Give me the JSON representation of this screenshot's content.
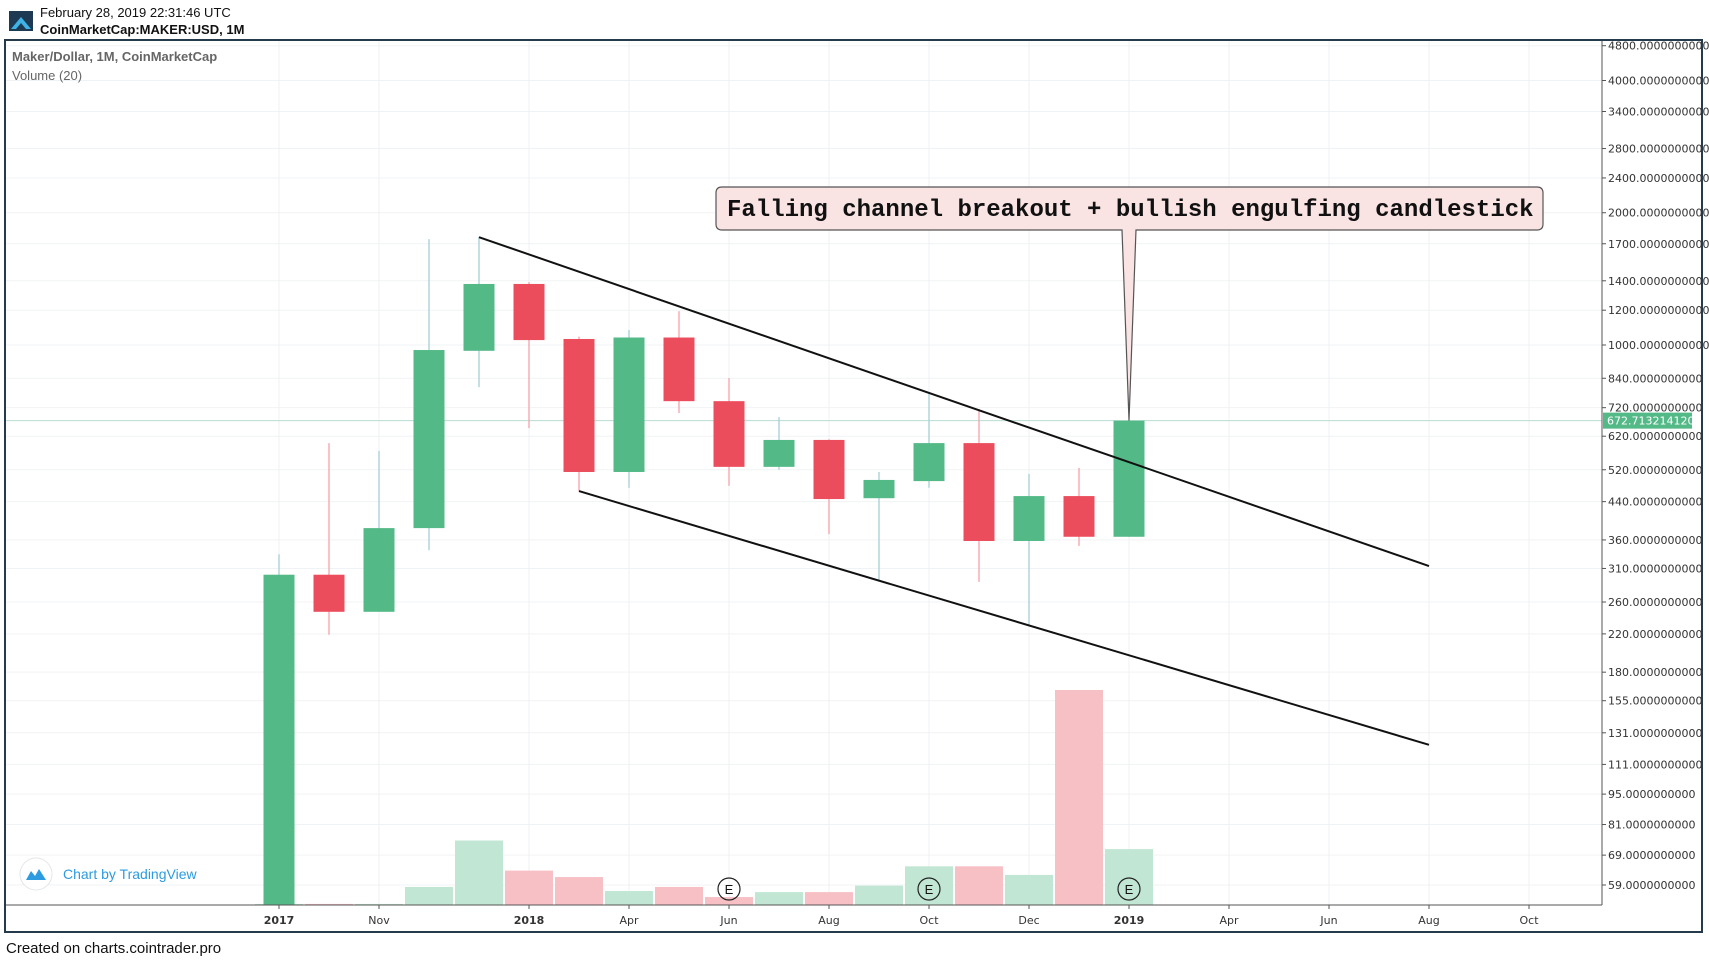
{
  "header": {
    "timestamp": "February 28, 2019 22:31:46 UTC",
    "symbol": "CoinMarketCap:MAKER:USD, 1M"
  },
  "legend": {
    "title": "Maker/Dollar, 1M, CoinMarketCap",
    "volume": "Volume (20)"
  },
  "watermark": "Chart by TradingView",
  "footer": "Created on charts.cointrader.pro",
  "colors": {
    "up": "#53b987",
    "down": "#eb4d5c",
    "up_wick": "#a6cfd5",
    "down_wick": "#f3a1a9",
    "up_volume": "#c1e7d4",
    "down_volume": "#f7c0c5",
    "frame": "#253a4a",
    "annotation_bg": "#f9e3e3",
    "last_price_bg": "#53b987"
  },
  "chart_data": {
    "type": "candlestick",
    "yscale": "log",
    "ylim": [
      54,
      4900
    ],
    "grid": true,
    "price_ticks": [
      "4800.0000000000",
      "4000.0000000000",
      "3400.0000000000",
      "2800.0000000000",
      "2400.0000000000",
      "2000.0000000000",
      "1700.0000000000",
      "1400.0000000000",
      "1200.0000000000",
      "1000.0000000000",
      "840.0000000000",
      "720.0000000000",
      "620.0000000000",
      "520.0000000000",
      "440.0000000000",
      "360.0000000000",
      "310.0000000000",
      "260.0000000000",
      "220.0000000000",
      "180.0000000000",
      "155.0000000000",
      "131.0000000000",
      "111.0000000000",
      "95.0000000000",
      "81.0000000000",
      "69.0000000000",
      "59.0000000000"
    ],
    "time_labels": [
      {
        "label": "2017",
        "index": 0,
        "bold": true
      },
      {
        "label": "Nov",
        "index": 2
      },
      {
        "label": "2018",
        "index": 5,
        "bold": true
      },
      {
        "label": "Apr",
        "index": 7
      },
      {
        "label": "Jun",
        "index": 9
      },
      {
        "label": "Aug",
        "index": 11
      },
      {
        "label": "Oct",
        "index": 13
      },
      {
        "label": "Dec",
        "index": 15
      },
      {
        "label": "2019",
        "index": 17,
        "bold": true
      },
      {
        "label": "Apr",
        "index": 19
      },
      {
        "label": "Jun",
        "index": 21
      },
      {
        "label": "Aug",
        "index": 23
      },
      {
        "label": "Oct",
        "index": 25
      }
    ],
    "candles": [
      {
        "o": 50,
        "h": 334,
        "l": 50,
        "c": 300,
        "v": 0.5
      },
      {
        "o": 300,
        "h": 598,
        "l": 219,
        "c": 247,
        "v": 0.5
      },
      {
        "o": 247,
        "h": 574,
        "l": 247,
        "c": 383,
        "v": 0.5
      },
      {
        "o": 383,
        "h": 1742,
        "l": 341,
        "c": 974,
        "v": 8.4
      },
      {
        "o": 970,
        "h": 1760,
        "l": 802,
        "c": 1377,
        "v": 30
      },
      {
        "o": 1377,
        "h": 1390,
        "l": 647,
        "c": 1026,
        "v": 16
      },
      {
        "o": 1032,
        "h": 1045,
        "l": 465,
        "c": 514,
        "v": 13
      },
      {
        "o": 514,
        "h": 1082,
        "l": 473,
        "c": 1040,
        "v": 6.5
      },
      {
        "o": 1040,
        "h": 1194,
        "l": 700,
        "c": 745,
        "v": 8.4
      },
      {
        "o": 745,
        "h": 841,
        "l": 478,
        "c": 528,
        "v": 3.7
      },
      {
        "o": 528,
        "h": 685,
        "l": 520,
        "c": 608,
        "v": 6
      },
      {
        "o": 608,
        "h": 610,
        "l": 371,
        "c": 446,
        "v": 6
      },
      {
        "o": 448,
        "h": 514,
        "l": 292,
        "c": 493,
        "v": 9
      },
      {
        "o": 490,
        "h": 782,
        "l": 473,
        "c": 598,
        "v": 18
      },
      {
        "o": 598,
        "h": 715,
        "l": 289,
        "c": 358,
        "v": 18
      },
      {
        "o": 358,
        "h": 509,
        "l": 231,
        "c": 453,
        "v": 14
      },
      {
        "o": 453,
        "h": 525,
        "l": 349,
        "c": 366,
        "v": 100
      },
      {
        "o": 366,
        "h": 672.71,
        "l": 366,
        "c": 672.71,
        "v": 26
      }
    ],
    "last_price": "672.7132141200",
    "last_price_value": 672.71321412,
    "event_markers": [
      {
        "label": "E",
        "index": 9
      },
      {
        "label": "E",
        "index": 13
      },
      {
        "label": "E",
        "index": 17
      }
    ],
    "trendlines": [
      {
        "from": {
          "index": 4,
          "price": 1760
        },
        "to": {
          "index": 23,
          "price": 314
        }
      },
      {
        "from": {
          "index": 6,
          "price": 465
        },
        "to": {
          "index": 23,
          "price": 123
        }
      }
    ],
    "annotation": {
      "text": "Falling channel breakout + bullish engulfing candlestick",
      "target": {
        "index": 17,
        "price": 672.71
      }
    }
  }
}
